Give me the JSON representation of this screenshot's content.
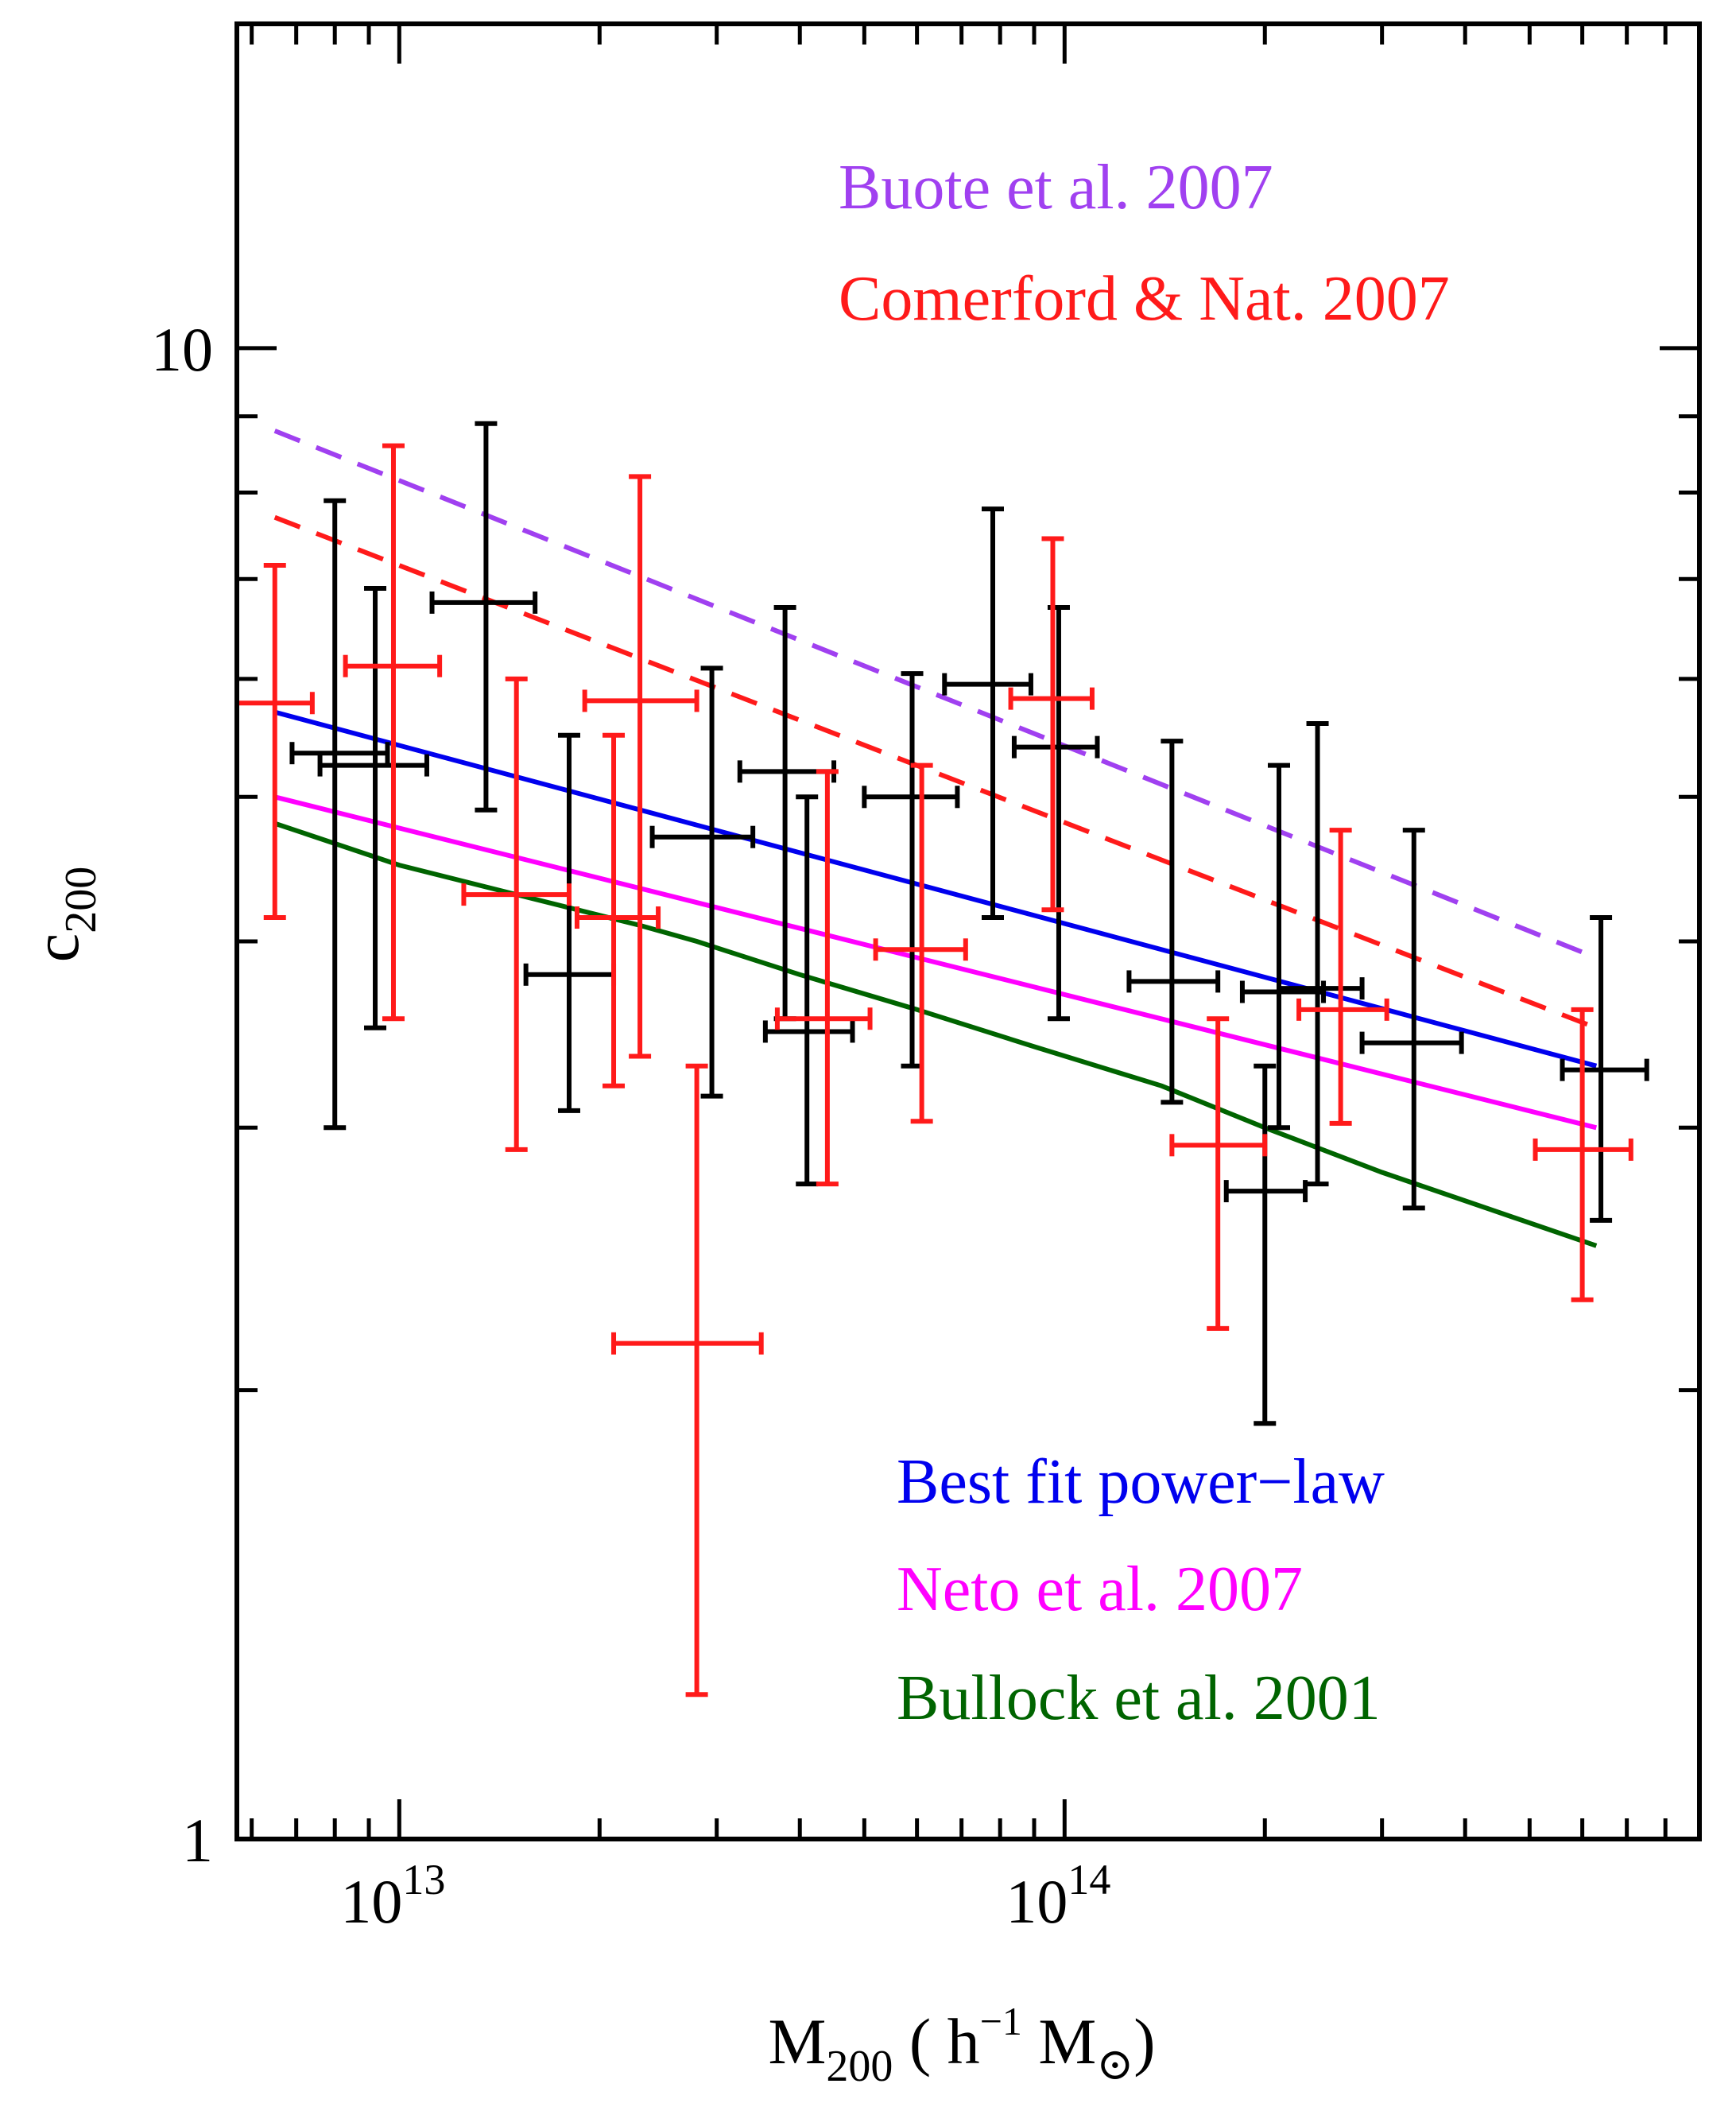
{
  "chart_data": {
    "type": "scatter",
    "xscale": "log",
    "yscale": "log",
    "xlim": [
      5700000000000.0,
      900000000000000.0
    ],
    "ylim": [
      1.0,
      16.5
    ],
    "xlabel": {
      "main": "M",
      "sub": "200",
      "rest": " ( h",
      "sup": "−1",
      "rest2": " M",
      "sym": "⊙",
      "end": ")"
    },
    "ylabel": {
      "main": "c",
      "sub": "200"
    },
    "x_ticks": [
      {
        "value": 10000000000000.0,
        "base": "10",
        "exp": "13"
      },
      {
        "value": 100000000000000.0,
        "base": "10",
        "exp": "14"
      }
    ],
    "y_ticks": [
      {
        "value": 10,
        "label": "10"
      },
      {
        "value": 1,
        "label": "1"
      }
    ],
    "colors": {
      "black": "#000000",
      "red": "#ff1a1a",
      "buote": "#a040f0",
      "comerford": "#ff1a1a",
      "bestfit": "#0000ee",
      "neto": "#ff00ff",
      "bullock": "#006400"
    },
    "legend_top": [
      {
        "text": "Buote et al. 2007",
        "color_key": "buote"
      },
      {
        "text": "Comerford & Nat. 2007",
        "color_key": "comerford"
      }
    ],
    "legend_bottom": [
      {
        "text": "Best fit power−law",
        "color_key": "bestfit"
      },
      {
        "text": "Neto et al. 2007",
        "color_key": "neto"
      },
      {
        "text": "Bullock et al. 2001",
        "color_key": "bullock"
      }
    ],
    "lines": [
      {
        "name": "Buote et al. 2007",
        "color_key": "buote",
        "dash": true,
        "x": [
          6500000000000.0,
          630000000000000.0
        ],
        "y": [
          8.8,
          3.9
        ]
      },
      {
        "name": "Comerford & Nat. 2007",
        "color_key": "comerford",
        "dash": true,
        "x": [
          6500000000000.0,
          630000000000000.0
        ],
        "y": [
          7.7,
          3.5
        ]
      },
      {
        "name": "Best fit power-law",
        "color_key": "bestfit",
        "dash": false,
        "x": [
          6500000000000.0,
          630000000000000.0
        ],
        "y": [
          5.7,
          3.3
        ]
      },
      {
        "name": "Neto et al. 2007",
        "color_key": "neto",
        "dash": false,
        "x": [
          6500000000000.0,
          630000000000000.0
        ],
        "y": [
          5.0,
          3.0
        ]
      },
      {
        "name": "Bullock et al. 2001",
        "color_key": "bullock",
        "dash": false,
        "x": [
          6500000000000.0,
          10000000000000.0,
          15000000000000.0,
          23000000000000.0,
          28000000000000.0,
          40000000000000.0,
          60000000000000.0,
          90000000000000.0,
          140000000000000.0,
          200000000000000.0,
          300000000000000.0,
          630000000000000.0
        ],
        "y": [
          4.8,
          4.5,
          4.3,
          4.1,
          4.0,
          3.8,
          3.6,
          3.4,
          3.2,
          3.0,
          2.8,
          2.5
        ]
      }
    ],
    "black_points": [
      {
        "x": 8000000000000.0,
        "y": 5.35,
        "xlo": 6900000000000.0,
        "xhi": 9600000000000.0,
        "ylo": 3.0,
        "yhi": 7.9
      },
      {
        "x": 9200000000000.0,
        "y": 5.25,
        "xlo": 7600000000000.0,
        "xhi": 11000000000000.0,
        "ylo": 3.5,
        "yhi": 6.9
      },
      {
        "x": 13500000000000.0,
        "y": 6.75,
        "xlo": 11200000000000.0,
        "xhi": 16000000000000.0,
        "ylo": 4.9,
        "yhi": 8.9
      },
      {
        "x": 18000000000000.0,
        "y": 3.8,
        "xlo": 15500000000000.0,
        "xhi": 21000000000000.0,
        "ylo": 3.08,
        "yhi": 5.5
      },
      {
        "x": 29500000000000.0,
        "y": 4.7,
        "xlo": 24000000000000.0,
        "xhi": 34000000000000.0,
        "ylo": 3.15,
        "yhi": 6.1
      },
      {
        "x": 38000000000000.0,
        "y": 5.2,
        "xlo": 32500000000000.0,
        "xhi": 45000000000000.0,
        "ylo": 3.55,
        "yhi": 6.7
      },
      {
        "x": 41000000000000.0,
        "y": 3.48,
        "xlo": 35500000000000.0,
        "xhi": 48000000000000.0,
        "ylo": 2.75,
        "yhi": 5.0
      },
      {
        "x": 59000000000000.0,
        "y": 5.0,
        "xlo": 50000000000000.0,
        "xhi": 69000000000000.0,
        "ylo": 3.3,
        "yhi": 6.05
      },
      {
        "x": 78000000000000.0,
        "y": 5.95,
        "xlo": 66000000000000.0,
        "xhi": 89000000000000.0,
        "ylo": 4.15,
        "yhi": 7.8
      },
      {
        "x": 98000000000000.0,
        "y": 5.4,
        "xlo": 84000000000000.0,
        "xhi": 112000000000000.0,
        "ylo": 3.55,
        "yhi": 6.7
      },
      {
        "x": 145000000000000.0,
        "y": 3.76,
        "xlo": 125000000000000.0,
        "xhi": 170000000000000.0,
        "ylo": 3.12,
        "yhi": 5.45
      },
      {
        "x": 210000000000000.0,
        "y": 3.7,
        "xlo": 185000000000000.0,
        "xhi": 245000000000000.0,
        "ylo": 3.0,
        "yhi": 5.25
      },
      {
        "x": 240000000000000.0,
        "y": 3.72,
        "xlo": 210000000000000.0,
        "xhi": 280000000000000.0,
        "ylo": 2.75,
        "yhi": 5.6
      },
      {
        "x": 200000000000000.0,
        "y": 2.72,
        "xlo": 175000000000000.0,
        "xhi": 230000000000000.0,
        "ylo": 1.9,
        "yhi": 3.3
      },
      {
        "x": 335000000000000.0,
        "y": 3.42,
        "xlo": 280000000000000.0,
        "xhi": 395000000000000.0,
        "ylo": 2.65,
        "yhi": 4.75
      },
      {
        "x": 640000000000000.0,
        "y": 3.28,
        "xlo": 560000000000000.0,
        "xhi": 750000000000000.0,
        "ylo": 2.6,
        "yhi": 4.15
      }
    ],
    "red_points": [
      {
        "x": 6500000000000.0,
        "y": 5.78,
        "xlo": 5700000000000.0,
        "xhi": 7400000000000.0,
        "ylo": 4.15,
        "yhi": 7.15
      },
      {
        "x": 9800000000000.0,
        "y": 6.12,
        "xlo": 8300000000000.0,
        "xhi": 11500000000000.0,
        "ylo": 3.55,
        "yhi": 8.6
      },
      {
        "x": 15000000000000.0,
        "y": 4.3,
        "xlo": 12500000000000.0,
        "xhi": 18000000000000.0,
        "ylo": 2.9,
        "yhi": 6.0
      },
      {
        "x": 21000000000000.0,
        "y": 4.15,
        "xlo": 18500000000000.0,
        "xhi": 24500000000000.0,
        "ylo": 3.2,
        "yhi": 5.5
      },
      {
        "x": 23000000000000.0,
        "y": 5.8,
        "xlo": 19000000000000.0,
        "xhi": 28000000000000.0,
        "ylo": 3.35,
        "yhi": 8.2
      },
      {
        "x": 28000000000000.0,
        "y": 2.15,
        "xlo": 21000000000000.0,
        "xhi": 35000000000000.0,
        "ylo": 1.25,
        "yhi": 3.3
      },
      {
        "x": 44000000000000.0,
        "y": 3.55,
        "xlo": 37000000000000.0,
        "xhi": 51000000000000.0,
        "ylo": 2.75,
        "yhi": 5.2
      },
      {
        "x": 61000000000000.0,
        "y": 3.95,
        "xlo": 52000000000000.0,
        "xhi": 71000000000000.0,
        "ylo": 3.03,
        "yhi": 5.25
      },
      {
        "x": 96000000000000.0,
        "y": 5.82,
        "xlo": 83000000000000.0,
        "xhi": 110000000000000.0,
        "ylo": 4.2,
        "yhi": 7.45
      },
      {
        "x": 170000000000000.0,
        "y": 2.92,
        "xlo": 145000000000000.0,
        "xhi": 200000000000000.0,
        "ylo": 2.2,
        "yhi": 3.55
      },
      {
        "x": 260000000000000.0,
        "y": 3.6,
        "xlo": 225000000000000.0,
        "xhi": 305000000000000.0,
        "ylo": 3.02,
        "yhi": 4.75
      },
      {
        "x": 600000000000000.0,
        "y": 2.9,
        "xlo": 510000000000000.0,
        "xhi": 710000000000000.0,
        "ylo": 2.3,
        "yhi": 3.6
      }
    ]
  }
}
